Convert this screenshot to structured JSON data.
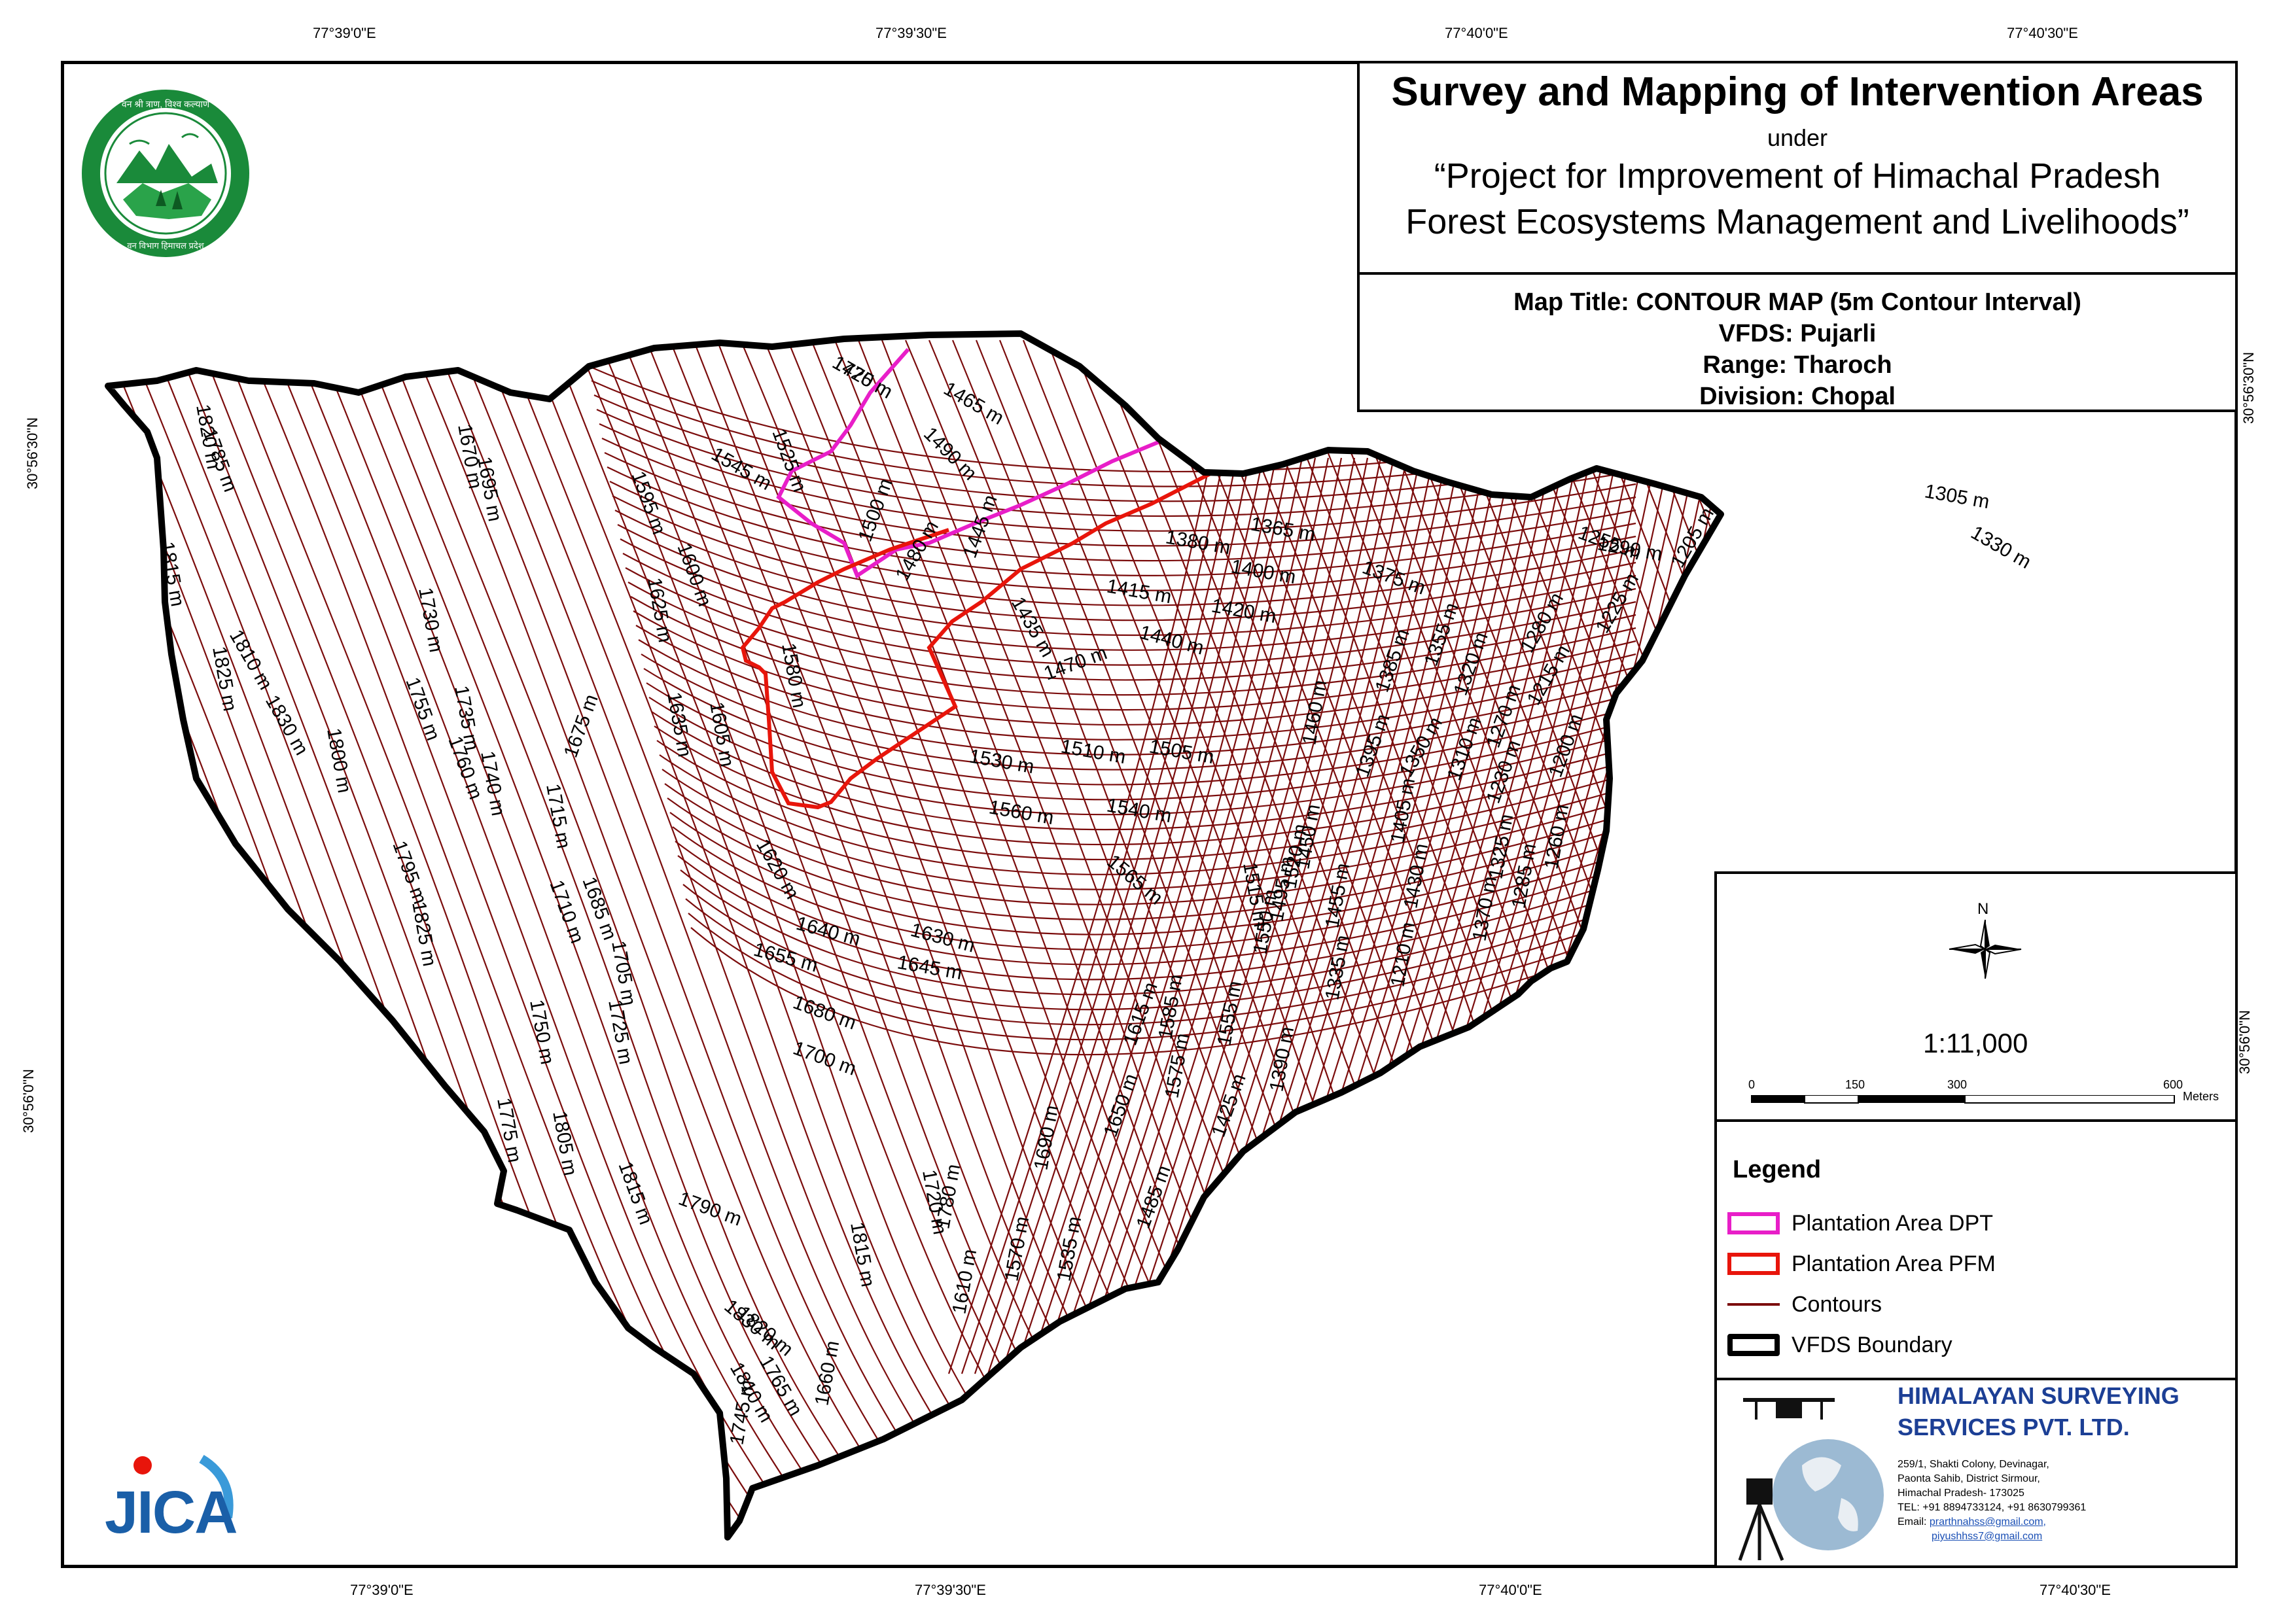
{
  "title_box": {
    "main_title": "Survey and Mapping of Intervention Areas",
    "under": "under",
    "project_line1": "“Project for Improvement of Himachal Pradesh",
    "project_line2": "Forest Ecosystems Management and Livelihoods”",
    "map_title": "Map Title: CONTOUR MAP (5m Contour Interval)",
    "vfds": "VFDS: Pujarli",
    "range": "Range: Tharoch",
    "division": "Division: Chopal"
  },
  "coordinates": {
    "top": [
      "77°39'0\"E",
      "77°39'30\"E",
      "77°40'0\"E",
      "77°40'30\"E"
    ],
    "bottom": [
      "77°39'0\"E",
      "77°39'30\"E",
      "77°40'0\"E",
      "77°40'30\"E"
    ],
    "left": [
      "30°56'30\"N",
      "30°56'0\"N"
    ],
    "right": [
      "30°56'30\"N",
      "30°56'0\"N"
    ]
  },
  "north_arrow": {
    "label": "N",
    "icon": "compass-rose-icon"
  },
  "scale": {
    "ratio": "1:11,000",
    "ticks": [
      "0",
      "150",
      "300",
      "600"
    ],
    "unit": "Meters"
  },
  "legend": {
    "title": "Legend",
    "items": [
      {
        "label": "Plantation Area DPT",
        "color": "#e81ec8"
      },
      {
        "label": "Plantation Area PFM",
        "color": "#e8150b"
      },
      {
        "label": "Contours",
        "color": "#7b0c0c"
      },
      {
        "label": "VFDS Boundary",
        "color": "#000000"
      }
    ]
  },
  "company": {
    "name_line1": "HIMALAYAN SURVEYING",
    "name_line2": "SERVICES PVT. LTD.",
    "address1": "259/1, Shakti Colony, Devinagar,",
    "address2": "Paonta Sahib, District Sirmour,",
    "address3": "Himachal Pradesh- 173025",
    "tel": "TEL: +91 8894733124, +91 8630799361",
    "email_label": "Email:",
    "email1": "prarthnahss@gmail.com,",
    "email2": "piyushhss7@gmail.com"
  },
  "logos": {
    "forest_dept_text_top": "वन श्री त्राण, विश्व कल्याण",
    "forest_dept_text_bottom": "वन विभाग हिमाचल प्रदेश",
    "jica": "JICA"
  },
  "contour_labels": [
    "1475 m",
    "1465 m",
    "1525 m",
    "1490 m",
    "1545 m",
    "1500 m",
    "1480 m",
    "1445 m",
    "1435 m",
    "1380 m",
    "1365 m",
    "1305 m",
    "1330 m",
    "1255 m",
    "1290 m",
    "1205 m",
    "1400 m",
    "1375 m",
    "1415 m",
    "1420 m",
    "1440 m",
    "1225 m",
    "1280 m",
    "1355 m",
    "1385 m",
    "1320 m",
    "1215 m",
    "1470 m",
    "1580 m",
    "1605 m",
    "1635 m",
    "1625 m",
    "1600 m",
    "1595 m",
    "1695 m",
    "1670 m",
    "1785 m",
    "1820 m",
    "1815 m",
    "1730 m",
    "1825 m",
    "1810 m",
    "1830 m",
    "1800 m",
    "1755 m",
    "1735 m",
    "1760 m",
    "1740 m",
    "1715 m",
    "1675 m",
    "1510 m",
    "1505 m",
    "1530 m",
    "1540 m",
    "1560 m",
    "1565 m",
    "1515 m",
    "1460 m",
    "1395 m",
    "1350 m",
    "1310 m",
    "1270 m",
    "1230 m",
    "1200 m",
    "1620 m",
    "1640 m",
    "1630 m",
    "1645 m",
    "1655 m",
    "1680 m",
    "1700 m",
    "1795 m",
    "1825 m",
    "1710 m",
    "1685 m",
    "1705 m",
    "1725 m",
    "1750 m",
    "1775 m",
    "1805 m",
    "1790 m",
    "1815 m",
    "1720 m",
    "1780 m",
    "1690 m",
    "1650 m",
    "1615 m",
    "1585 m",
    "1575 m",
    "1555 m",
    "1550 m",
    "1520 m",
    "1495 m",
    "1455 m",
    "1450 m",
    "1405 m",
    "1430 m",
    "1370 m",
    "1325 m",
    "1285 m",
    "1260 m",
    "1210 m",
    "1335 m",
    "1390 m",
    "1425 m",
    "1485 m",
    "1535 m",
    "1570 m",
    "1610 m",
    "1660 m",
    "1745 m",
    "1765 m",
    "1820 m",
    "1830 m",
    "1810 m",
    "1815 m",
    "1720 m"
  ]
}
